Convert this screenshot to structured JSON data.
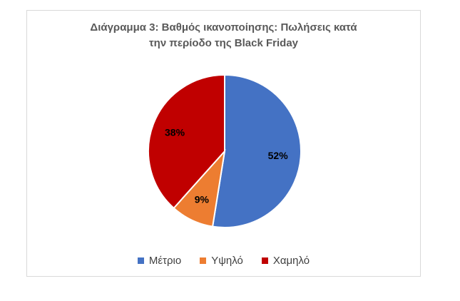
{
  "chart_data": {
    "type": "pie",
    "title_line1": "Διάγραμμα 3: Βαθμός ικανοποίησης: Πωλήσεις κατά",
    "title_line2": "την περίοδο της Black Friday",
    "slices": [
      {
        "label": "Μέτριο",
        "value": 52,
        "display": "52%",
        "color": "#4472C4"
      },
      {
        "label": "Υψηλό",
        "value": 9,
        "display": "9%",
        "color": "#ED7D31"
      },
      {
        "label": "Χαμηλό",
        "value": 38,
        "display": "38%",
        "color": "#C00000"
      }
    ],
    "legend_position": "bottom"
  }
}
